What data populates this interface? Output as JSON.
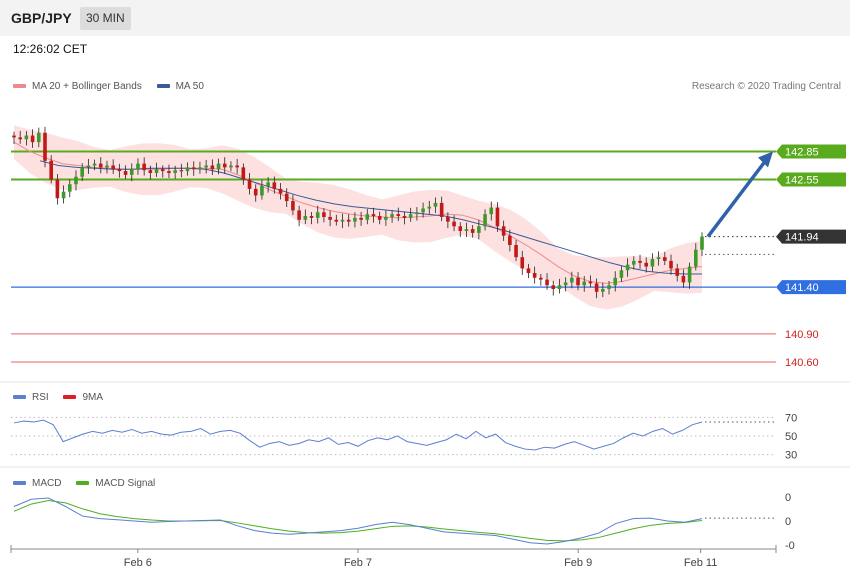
{
  "header": {
    "pair": "GBP/JPY",
    "timeframe": "30 MIN"
  },
  "clock": "12:26:02 CET",
  "legend_main": [
    {
      "label": "MA 20 + Bollinger Bands",
      "color": "#f08a8a"
    },
    {
      "label": "MA 50",
      "color": "#3a5a9a"
    }
  ],
  "legend_rsi": [
    {
      "label": "RSI",
      "color": "#5b7fd1"
    },
    {
      "label": "9MA",
      "color": "#e02020"
    }
  ],
  "legend_macd": [
    {
      "label": "MACD",
      "color": "#5b7fd1"
    },
    {
      "label": "MACD Signal",
      "color": "#4caf20"
    }
  ],
  "credit": "Research © 2020 Trading Central",
  "chart_data": [
    {
      "type": "candlestick",
      "title": "GBP/JPY",
      "ylim": [
        140.45,
        143.4
      ],
      "levels": [
        {
          "label": "142.85",
          "value": 142.85,
          "style": "resistance",
          "color": "#5aaa1e"
        },
        {
          "label": "142.55",
          "value": 142.55,
          "style": "resistance",
          "color": "#5aaa1e"
        },
        {
          "label": "141.94",
          "value": 141.94,
          "style": "last",
          "color": "#333333"
        },
        {
          "label": "141.40",
          "value": 141.4,
          "style": "pivot",
          "color": "#2f6fe0"
        },
        {
          "label": "140.90",
          "value": 140.9,
          "style": "support",
          "color": "#f08080"
        },
        {
          "label": "140.60",
          "value": 140.6,
          "style": "support",
          "color": "#f08080"
        }
      ],
      "x_ticks": [
        "Feb 6",
        "Feb 7",
        "Feb 9",
        "Feb 11"
      ],
      "close": [
        143.0,
        142.98,
        143.02,
        142.95,
        143.05,
        142.75,
        142.55,
        142.35,
        142.42,
        142.5,
        142.58,
        142.68,
        142.7,
        142.72,
        142.68,
        142.7,
        142.66,
        142.64,
        142.6,
        142.66,
        142.72,
        142.65,
        142.62,
        142.66,
        142.64,
        142.62,
        142.65,
        142.64,
        142.68,
        142.66,
        142.68,
        142.7,
        142.66,
        142.72,
        142.68,
        142.7,
        142.68,
        142.55,
        142.45,
        142.38,
        142.48,
        142.52,
        142.45,
        142.4,
        142.32,
        142.22,
        142.12,
        142.16,
        142.14,
        142.2,
        142.15,
        142.12,
        142.1,
        142.12,
        142.1,
        142.14,
        142.12,
        142.18,
        142.16,
        142.12,
        142.15,
        142.18,
        142.16,
        142.14,
        142.18,
        142.2,
        142.24,
        142.26,
        142.3,
        142.15,
        142.1,
        142.05,
        142.0,
        142.02,
        141.98,
        142.05,
        142.18,
        142.25,
        142.05,
        141.95,
        141.85,
        141.72,
        141.6,
        141.55,
        141.5,
        141.48,
        141.42,
        141.38,
        141.42,
        141.45,
        141.5,
        141.42,
        141.46,
        141.44,
        141.35,
        141.38,
        141.42,
        141.5,
        141.58,
        141.64,
        141.68,
        141.66,
        141.62,
        141.7,
        141.72,
        141.68,
        141.6,
        141.52,
        141.45,
        141.62,
        141.8,
        141.94
      ],
      "ma20": [
        142.95,
        142.85,
        142.78,
        142.72,
        142.7,
        142.68,
        142.67,
        142.66,
        142.66,
        142.66,
        142.67,
        142.67,
        142.67,
        142.66,
        142.6,
        142.52,
        142.44,
        142.37,
        142.3,
        142.25,
        142.21,
        142.18,
        142.16,
        142.15,
        142.14,
        142.15,
        142.16,
        142.18,
        142.17,
        142.12,
        142.04,
        141.95,
        141.85,
        141.74,
        141.62,
        141.52,
        141.46,
        141.44,
        141.46,
        141.5,
        141.54,
        141.58,
        141.6,
        141.62
      ],
      "ma50": [
        142.75,
        142.7,
        142.68,
        142.67,
        142.66,
        142.66,
        142.67,
        142.67,
        142.67,
        142.66,
        142.62,
        142.56,
        142.5,
        142.44,
        142.38,
        142.33,
        142.29,
        142.26,
        142.24,
        142.22,
        142.2,
        142.18,
        142.16,
        142.12,
        142.07,
        142.02,
        141.96,
        141.9,
        141.84,
        141.78,
        141.72,
        141.66,
        141.61,
        141.57,
        141.55,
        141.54,
        141.54
      ],
      "rsi": {
        "ylim": [
          20,
          80
        ],
        "tick_labels": [
          "70",
          "50",
          "30"
        ],
        "tick_values": [
          70,
          50,
          30
        ],
        "values": [
          64,
          66,
          65,
          67,
          62,
          44,
          48,
          52,
          55,
          53,
          56,
          54,
          57,
          53,
          55,
          52,
          51,
          54,
          55,
          58,
          52,
          55,
          56,
          53,
          45,
          38,
          42,
          44,
          40,
          42,
          46,
          44,
          48,
          41,
          43,
          39,
          45,
          48,
          46,
          50,
          44,
          42,
          40,
          43,
          46,
          52,
          47,
          55,
          48,
          52,
          43,
          39,
          36,
          35,
          38,
          37,
          41,
          44,
          40,
          36,
          39,
          42,
          48,
          53,
          50,
          55,
          58,
          52,
          56,
          62,
          65
        ]
      },
      "macd": {
        "ylim": [
          -0.12,
          0.12
        ],
        "tick_labels": [
          "0",
          "0",
          "-0"
        ],
        "tick_values": [
          0.1,
          0.0,
          -0.1
        ],
        "macd": [
          0.06,
          0.09,
          0.095,
          0.06,
          0.02,
          0.01,
          0.005,
          0.0,
          -0.005,
          -0.002,
          0.0,
          0.002,
          0.004,
          -0.02,
          -0.04,
          -0.05,
          -0.055,
          -0.05,
          -0.045,
          -0.04,
          -0.03,
          -0.015,
          -0.005,
          -0.015,
          -0.03,
          -0.045,
          -0.05,
          -0.055,
          -0.06,
          -0.075,
          -0.09,
          -0.095,
          -0.085,
          -0.07,
          -0.05,
          -0.01,
          0.01,
          0.012,
          0.0,
          -0.005,
          0.01
        ],
        "signal": [
          0.04,
          0.07,
          0.085,
          0.075,
          0.05,
          0.03,
          0.018,
          0.01,
          0.004,
          0.0,
          0.0,
          0.001,
          0.002,
          -0.008,
          -0.02,
          -0.032,
          -0.042,
          -0.048,
          -0.05,
          -0.048,
          -0.042,
          -0.032,
          -0.022,
          -0.02,
          -0.025,
          -0.033,
          -0.04,
          -0.047,
          -0.053,
          -0.062,
          -0.072,
          -0.08,
          -0.082,
          -0.078,
          -0.068,
          -0.05,
          -0.032,
          -0.018,
          -0.01,
          -0.006,
          0.002
        ]
      }
    }
  ]
}
